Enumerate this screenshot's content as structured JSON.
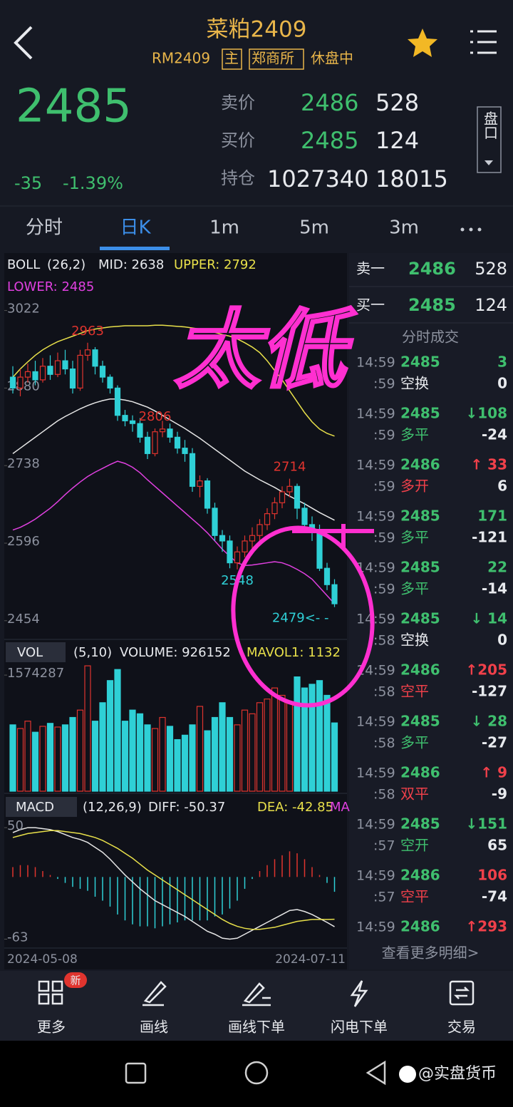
{
  "header": {
    "title": "菜粕2409",
    "code": "RM2409",
    "main": "主",
    "exchange": "郑商所",
    "status": "休盘中"
  },
  "quote": {
    "last": "2485",
    "change": "-35",
    "change_pct": "-1.39%",
    "ask_label": "卖价",
    "ask": "2486",
    "ask_vol": "528",
    "bid_label": "买价",
    "bid": "2485",
    "bid_vol": "124",
    "oi_label": "持仓",
    "oi": "1027340",
    "oi_change": "18015",
    "panel_button": "盘口"
  },
  "tabs": [
    "分时",
    "日K",
    "1m",
    "5m",
    "3m"
  ],
  "chart_data": [
    {
      "type": "candlestick",
      "name": "BOLL",
      "params": "(26,2)",
      "mid_label": "MID: 2638",
      "upper_label": "UPPER: 2792",
      "lower_label": "LOWER: 2485",
      "ylim": [
        2425,
        3075
      ],
      "yticks": [
        3022,
        2880,
        2738,
        2596,
        2454
      ],
      "up_color": "#e0342e",
      "down_color": "#2fd0d6",
      "open": [
        2900,
        2880,
        2900,
        2910,
        2895,
        2920,
        2905,
        2930,
        2915,
        2880,
        2940,
        2950,
        2920,
        2900,
        2880,
        2830,
        2820,
        2815,
        2790,
        2760,
        2800,
        2805,
        2790,
        2770,
        2760,
        2700,
        2710,
        2660,
        2610,
        2600,
        2560,
        2580,
        2600,
        2610,
        2630,
        2650,
        2670,
        2690,
        2700,
        2660,
        2630,
        2620,
        2550,
        2520
      ],
      "close": [
        2880,
        2900,
        2910,
        2895,
        2920,
        2905,
        2930,
        2915,
        2880,
        2940,
        2950,
        2920,
        2900,
        2880,
        2830,
        2820,
        2815,
        2790,
        2760,
        2800,
        2805,
        2790,
        2770,
        2760,
        2700,
        2710,
        2660,
        2610,
        2600,
        2560,
        2580,
        2600,
        2610,
        2630,
        2650,
        2670,
        2690,
        2700,
        2660,
        2630,
        2620,
        2550,
        2520,
        2485
      ],
      "high": [
        2920,
        2915,
        2925,
        2930,
        2935,
        2940,
        2945,
        2950,
        2930,
        2950,
        2963,
        2955,
        2930,
        2905,
        2885,
        2840,
        2830,
        2825,
        2800,
        2806,
        2820,
        2815,
        2800,
        2785,
        2770,
        2720,
        2715,
        2670,
        2620,
        2610,
        2590,
        2610,
        2625,
        2640,
        2660,
        2680,
        2700,
        2714,
        2705,
        2670,
        2645,
        2630,
        2560,
        2530
      ],
      "low": [
        2870,
        2865,
        2890,
        2885,
        2890,
        2895,
        2900,
        2905,
        2870,
        2875,
        2930,
        2905,
        2890,
        2870,
        2820,
        2810,
        2800,
        2780,
        2750,
        2755,
        2790,
        2780,
        2760,
        2745,
        2690,
        2680,
        2650,
        2600,
        2580,
        2550,
        2548,
        2570,
        2585,
        2600,
        2620,
        2640,
        2660,
        2680,
        2640,
        2620,
        2600,
        2545,
        2510,
        2479
      ],
      "series": [
        {
          "name": "MID",
          "color": "#e6e6e6",
          "values": [
            2760,
            2770,
            2780,
            2790,
            2800,
            2810,
            2820,
            2828,
            2835,
            2842,
            2848,
            2853,
            2857,
            2860,
            2860,
            2858,
            2855,
            2850,
            2845,
            2838,
            2830,
            2822,
            2814,
            2806,
            2797,
            2788,
            2778,
            2768,
            2758,
            2748,
            2738,
            2728,
            2720,
            2712,
            2705,
            2698,
            2690,
            2682,
            2675,
            2668,
            2660,
            2652,
            2645,
            2638
          ]
        },
        {
          "name": "UPPER",
          "color": "#e8e04a",
          "values": [
            2900,
            2915,
            2928,
            2940,
            2950,
            2958,
            2965,
            2970,
            2975,
            2980,
            2985,
            2988,
            2990,
            2992,
            2993,
            2994,
            2994,
            2994,
            2994,
            2995,
            2995,
            2994,
            2993,
            2992,
            2990,
            2988,
            2985,
            2982,
            2978,
            2975,
            2970,
            2963,
            2955,
            2945,
            2930,
            2912,
            2895,
            2875,
            2855,
            2835,
            2818,
            2805,
            2797,
            2792
          ]
        },
        {
          "name": "LOWER",
          "color": "#e040e0",
          "values": [
            2620,
            2625,
            2632,
            2640,
            2650,
            2660,
            2672,
            2685,
            2697,
            2708,
            2718,
            2726,
            2733,
            2740,
            2746,
            2742,
            2735,
            2725,
            2712,
            2700,
            2688,
            2676,
            2664,
            2652,
            2640,
            2628,
            2615,
            2600,
            2585,
            2572,
            2560,
            2555,
            2556,
            2558,
            2560,
            2562,
            2560,
            2555,
            2548,
            2540,
            2530,
            2515,
            2500,
            2485
          ]
        }
      ],
      "annotations": [
        {
          "index": 10,
          "value": 2963
        },
        {
          "index": 19,
          "value": 2806
        },
        {
          "index": 37,
          "value": 2714
        },
        {
          "index": 30,
          "value": 2548
        },
        {
          "index": 43,
          "value": 2479,
          "label": "2479<- -"
        }
      ]
    },
    {
      "type": "bar",
      "name": "VOL",
      "params": "(5,10)",
      "volume_label": "VOLUME: 926152",
      "mavol_label": "MAVOL1: 1132",
      "ylim": [
        0,
        1720000
      ],
      "yticks": [
        1574287
      ],
      "values": [
        900000,
        850000,
        950000,
        800000,
        880000,
        920000,
        870000,
        900000,
        1000000,
        1100000,
        1700000,
        950000,
        1200000,
        1500000,
        1650000,
        950000,
        1100000,
        1050000,
        900000,
        850000,
        1000000,
        880000,
        700000,
        760000,
        900000,
        1150000,
        820000,
        1000000,
        1200000,
        1000000,
        900000,
        1100000,
        1050000,
        1200000,
        1250000,
        1400000,
        1300000,
        1200000,
        1550000,
        1400000,
        1450000,
        1500000,
        1300000,
        926152
      ]
    },
    {
      "type": "macd",
      "name": "MACD",
      "params": "(12,26,9)",
      "diff_label": "DIFF: -50.37",
      "dea_label": "DEA: -42.85",
      "ma_label": "MA",
      "ylim": [
        -72,
        58
      ],
      "yticks": [
        50,
        -63
      ],
      "x_labels": [
        "2024-05-08",
        "2024-07-11"
      ],
      "series": [
        {
          "name": "DIFF",
          "color": "#e6e6e6",
          "values": [
            45,
            48,
            50,
            50,
            49,
            48,
            46,
            43,
            40,
            38,
            35,
            30,
            25,
            18,
            10,
            2,
            -5,
            -12,
            -18,
            -24,
            -28,
            -32,
            -36,
            -40,
            -45,
            -50,
            -55,
            -58,
            -62,
            -63,
            -62,
            -58,
            -54,
            -50,
            -46,
            -42,
            -38,
            -34,
            -33,
            -35,
            -38,
            -42,
            -46,
            -50.37
          ]
        },
        {
          "name": "DEA",
          "color": "#e8e04a",
          "values": [
            40,
            42,
            44,
            45,
            46,
            47,
            47,
            46,
            45,
            44,
            42,
            40,
            37,
            33,
            29,
            24,
            19,
            13,
            7,
            2,
            -3,
            -8,
            -13,
            -18,
            -23,
            -28,
            -33,
            -38,
            -43,
            -47,
            -50,
            -52,
            -53,
            -53,
            -52,
            -51,
            -49,
            -47,
            -45,
            -44,
            -43,
            -43,
            -43,
            -42.85
          ]
        }
      ],
      "hist": [
        10,
        12,
        12,
        10,
        6,
        2,
        -2,
        -6,
        -10,
        -12,
        -14,
        -20,
        -24,
        -30,
        -38,
        -44,
        -48,
        -50,
        -50,
        -52,
        -50,
        -48,
        -46,
        -44,
        -44,
        -44,
        -44,
        -40,
        -38,
        -32,
        -24,
        -12,
        -2,
        6,
        12,
        18,
        22,
        26,
        24,
        18,
        10,
        2,
        -6,
        -15
      ]
    }
  ],
  "order_book": {
    "ask_label": "卖一",
    "ask": "2486",
    "ask_vol": "528",
    "bid_label": "买一",
    "bid": "2485",
    "bid_vol": "124"
  },
  "trades": {
    "title": "分时成交",
    "more": "查看更多明细>",
    "colors": {
      "up": "#f0404a",
      "down": "#3fbf6e",
      "flat": "#e8eaee"
    },
    "rows": [
      {
        "time": "14:59",
        "sub": ":59",
        "price": "2485",
        "vol": "3",
        "vol_dir": "down",
        "kind": "空换",
        "kind_dir": "flat",
        "oi": "0"
      },
      {
        "time": "14:59",
        "sub": ":59",
        "price": "2485",
        "vol": "↓108",
        "vol_dir": "down",
        "kind": "多平",
        "kind_dir": "down",
        "oi": "-24"
      },
      {
        "time": "14:59",
        "sub": ":59",
        "price": "2486",
        "vol": "↑ 33",
        "vol_dir": "up",
        "kind": "多开",
        "kind_dir": "up",
        "oi": "6"
      },
      {
        "time": "14:59",
        "sub": ":59",
        "price": "2485",
        "vol": "171",
        "vol_dir": "down",
        "kind": "多平",
        "kind_dir": "down",
        "oi": "-121"
      },
      {
        "time": "14:59",
        "sub": ":59",
        "price": "2485",
        "vol": "22",
        "vol_dir": "down",
        "kind": "多平",
        "kind_dir": "down",
        "oi": "-14"
      },
      {
        "time": "14:59",
        "sub": ":58",
        "price": "2485",
        "vol": "↓ 14",
        "vol_dir": "down",
        "kind": "空换",
        "kind_dir": "flat",
        "oi": "0"
      },
      {
        "time": "14:59",
        "sub": ":58",
        "price": "2486",
        "vol": "↑205",
        "vol_dir": "up",
        "kind": "空平",
        "kind_dir": "up",
        "oi": "-127"
      },
      {
        "time": "14:59",
        "sub": ":58",
        "price": "2485",
        "vol": "↓ 28",
        "vol_dir": "down",
        "kind": "多平",
        "kind_dir": "down",
        "oi": "-27"
      },
      {
        "time": "14:59",
        "sub": ":58",
        "price": "2486",
        "vol": "↑ 9",
        "vol_dir": "up",
        "kind": "双平",
        "kind_dir": "up",
        "oi": "-9"
      },
      {
        "time": "14:59",
        "sub": ":57",
        "price": "2485",
        "vol": "↓151",
        "vol_dir": "down",
        "kind": "空开",
        "kind_dir": "down",
        "oi": "65"
      },
      {
        "time": "14:59",
        "sub": ":57",
        "price": "2486",
        "vol": "106",
        "vol_dir": "up",
        "kind": "空平",
        "kind_dir": "up",
        "oi": "-74"
      },
      {
        "time": "14:59",
        "price": "2486",
        "vol": "↑293",
        "vol_dir": "up"
      }
    ]
  },
  "toolbar": {
    "items": [
      "更多",
      "画线",
      "画线下单",
      "闪电下单",
      "交易"
    ],
    "badge": "新"
  },
  "annotation": "太低",
  "watermark": "@实盘货币"
}
